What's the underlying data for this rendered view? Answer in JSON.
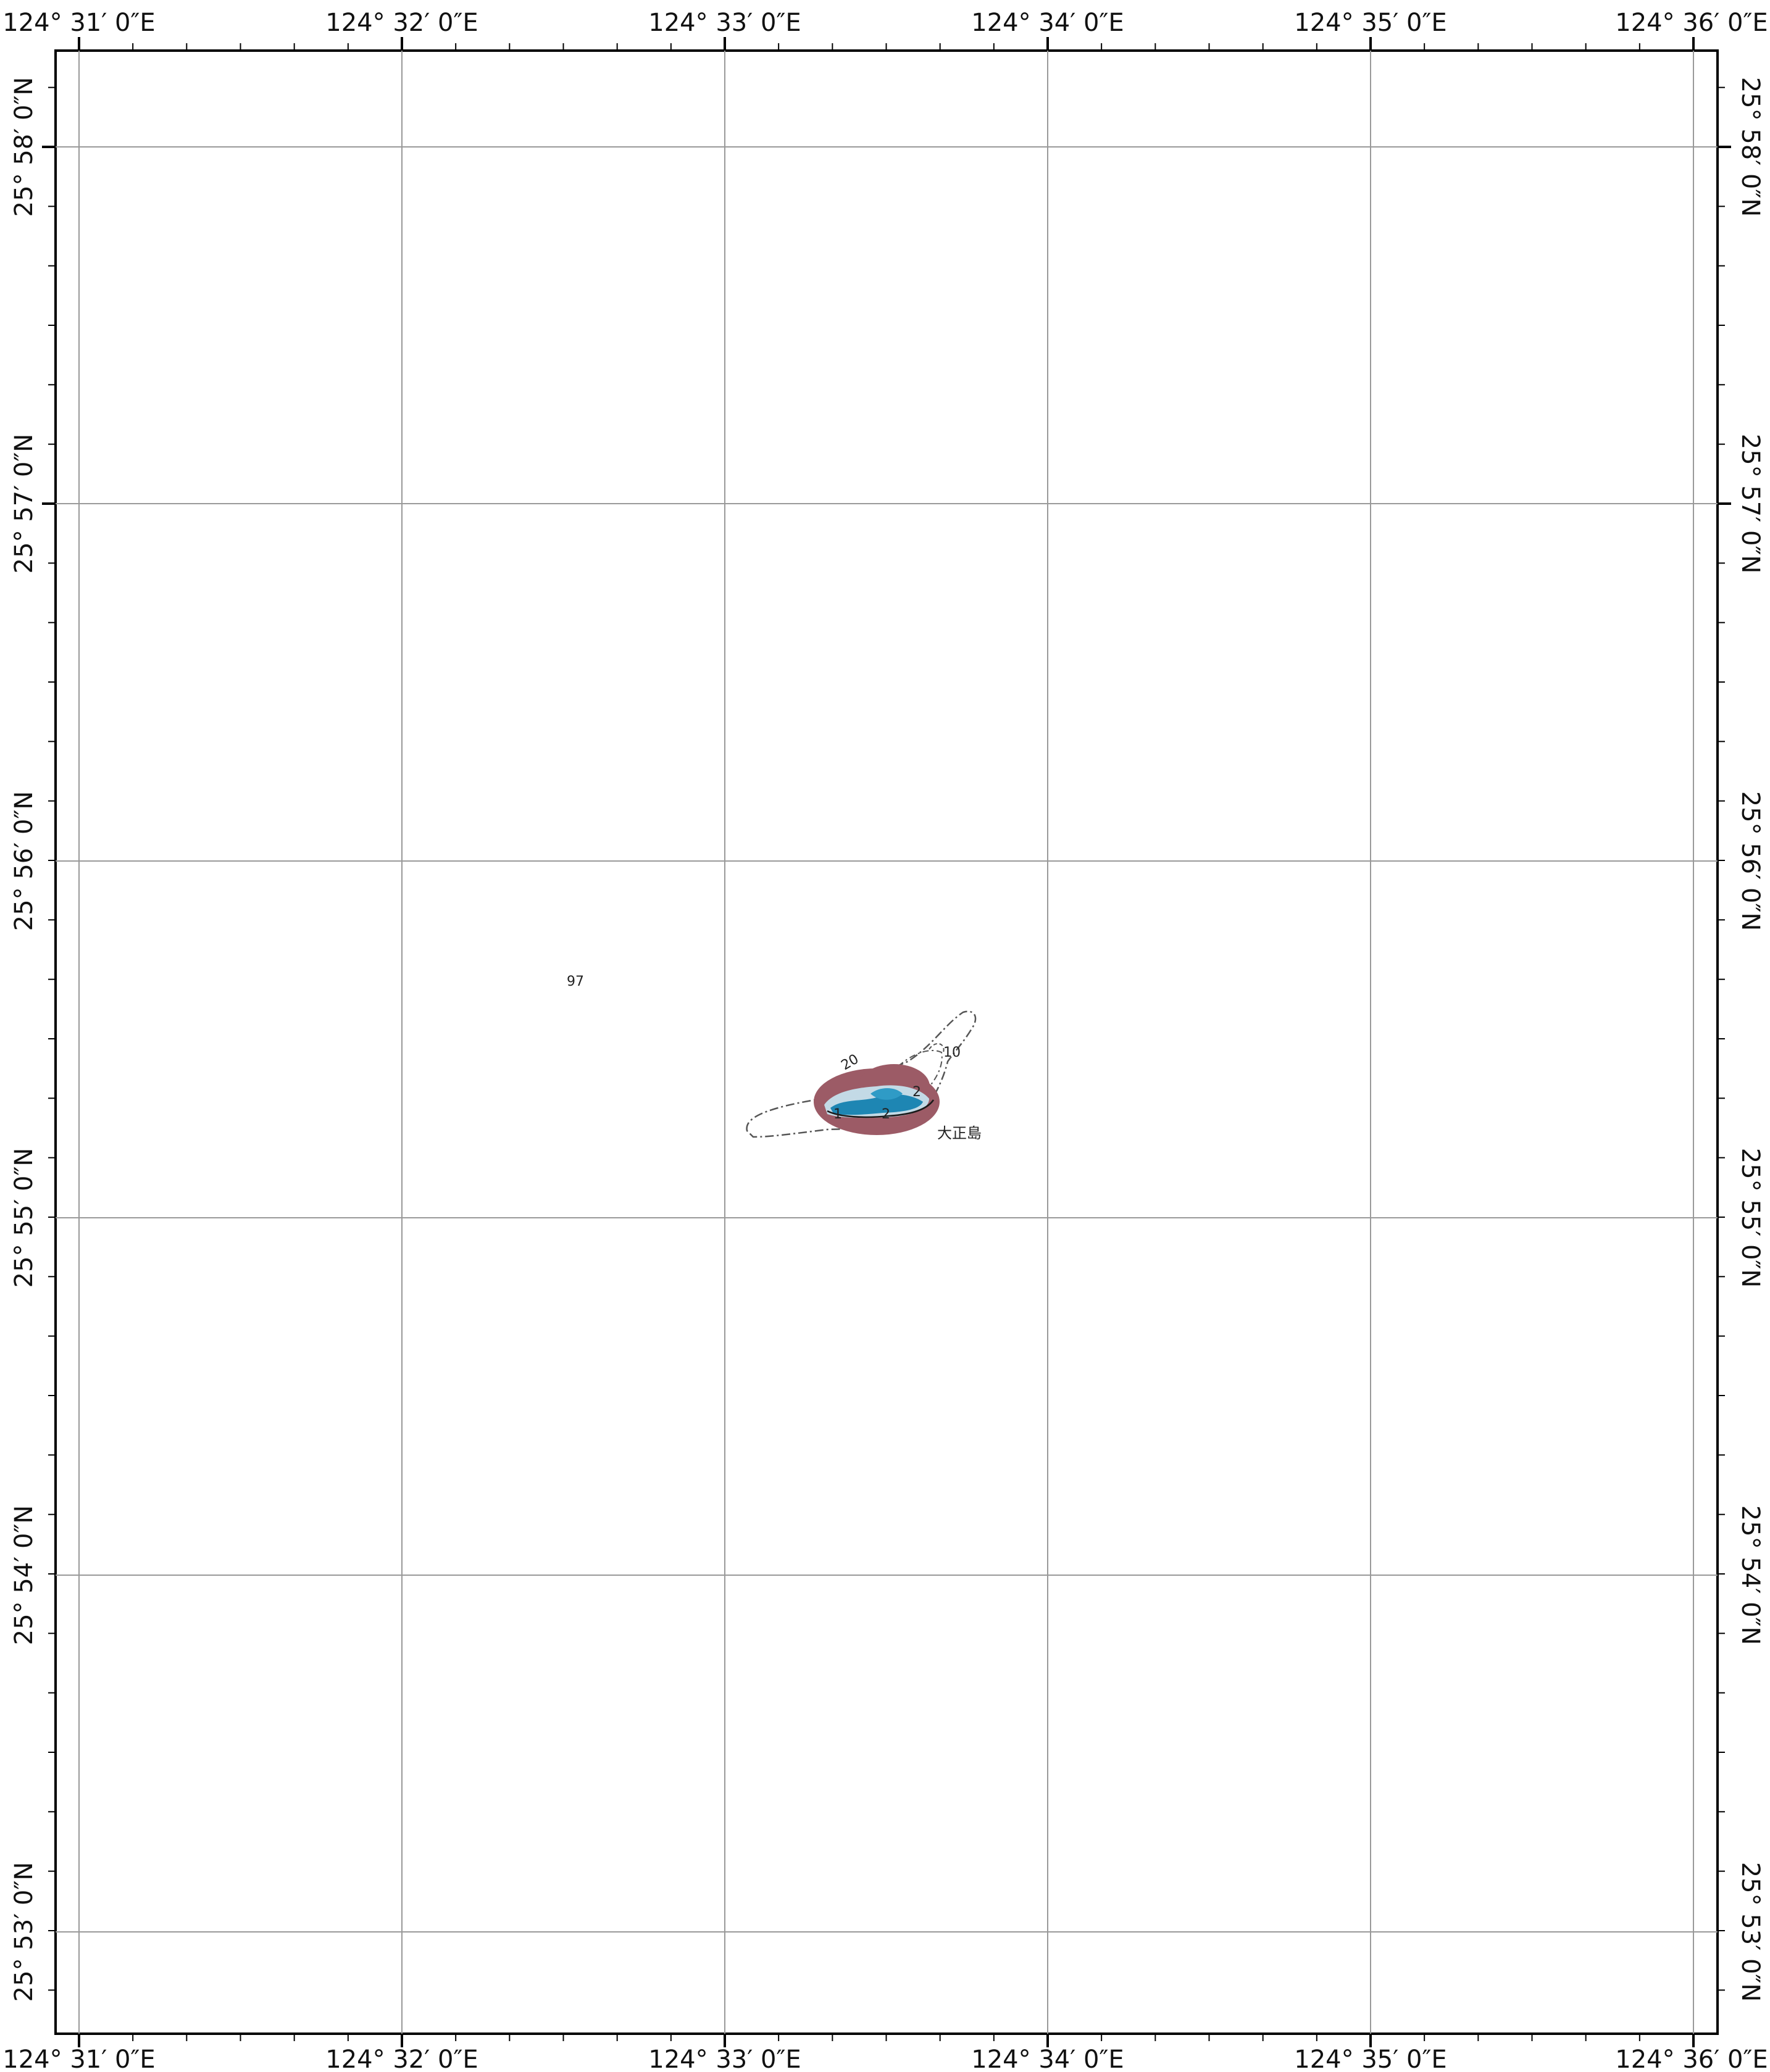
{
  "map": {
    "lon_labels": [
      "124°  31′ 0″E",
      "124°  32′ 0″E",
      "124°  33′ 0″E",
      "124°  34′ 0″E",
      "124°  35′ 0″E",
      "124°  36′ 0″E"
    ],
    "lat_labels": [
      "25°  58′ 0″N",
      "25°  57′ 0″N",
      "25°  56′ 0″N",
      "25°  55′ 0″N",
      "25°  54′ 0″N",
      "25°  53′ 0″N"
    ],
    "depth_sounding": "97",
    "place_name": "大正島",
    "contour_labels": [
      "20",
      "10",
      "2",
      "1",
      "2"
    ]
  },
  "colors": {
    "frame": "#000000",
    "grid": "#999999",
    "reef": "#9c5b66",
    "island_water": "#1e86b3",
    "island_light": "#c3dae6"
  }
}
